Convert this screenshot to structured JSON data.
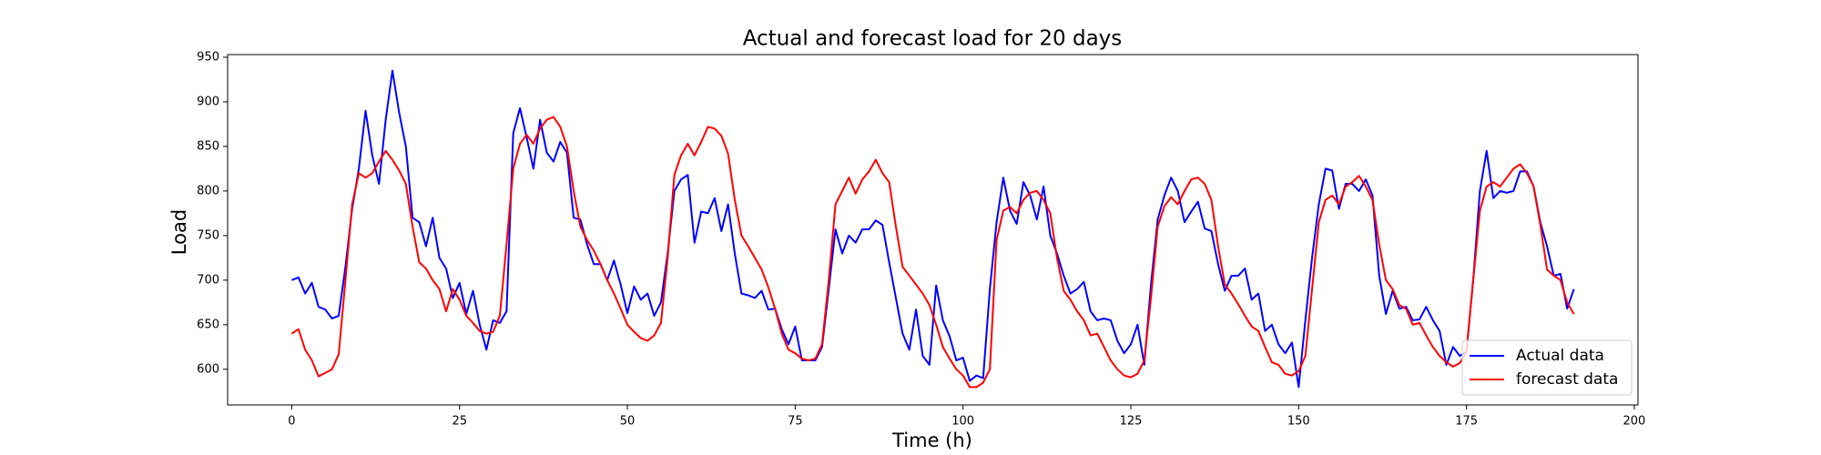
{
  "chart_data": {
    "type": "line",
    "title": "Actual and forecast load for 20 days",
    "x_label": "Time (h)",
    "y_label": "Load",
    "xlim": [
      -9.55,
      200.55
    ],
    "ylim": [
      560,
      953
    ],
    "xticks": [
      0,
      25,
      50,
      75,
      100,
      125,
      150,
      175,
      200
    ],
    "yticks": [
      600,
      650,
      700,
      750,
      800,
      850,
      900,
      950
    ],
    "legend": "lower right",
    "series": [
      {
        "name": "Actual data",
        "color": "#0000ff",
        "values": [
          700,
          703,
          685,
          697,
          670,
          667,
          657,
          660,
          715,
          780,
          825,
          890,
          840,
          808,
          880,
          935,
          888,
          850,
          770,
          765,
          738,
          770,
          725,
          713,
          680,
          697,
          662,
          688,
          650,
          622,
          655,
          652,
          665,
          865,
          893,
          860,
          825,
          880,
          843,
          833,
          855,
          843,
          770,
          768,
          740,
          718,
          718,
          700,
          722,
          695,
          663,
          693,
          678,
          685,
          660,
          675,
          730,
          800,
          813,
          818,
          742,
          777,
          775,
          792,
          755,
          785,
          730,
          685,
          683,
          680,
          688,
          667,
          668,
          645,
          628,
          648,
          610,
          610,
          610,
          625,
          690,
          757,
          730,
          750,
          742,
          757,
          757,
          767,
          762,
          720,
          680,
          640,
          622,
          667,
          615,
          605,
          694,
          655,
          637,
          610,
          613,
          587,
          593,
          590,
          690,
          765,
          815,
          778,
          763,
          810,
          795,
          768,
          805,
          750,
          730,
          705,
          685,
          690,
          698,
          665,
          655,
          657,
          655,
          632,
          618,
          628,
          650,
          605,
          695,
          768,
          795,
          815,
          800,
          765,
          777,
          788,
          758,
          755,
          718,
          688,
          705,
          705,
          713,
          678,
          685,
          643,
          650,
          628,
          618,
          630,
          580,
          655,
          725,
          785,
          825,
          823,
          780,
          808,
          808,
          800,
          813,
          795,
          705,
          662,
          688,
          668,
          670,
          655,
          656,
          670,
          655,
          643,
          605,
          625,
          615,
          620,
          700,
          800,
          845,
          792,
          800,
          798,
          800,
          822,
          822,
          805,
          765,
          738,
          705,
          707,
          668,
          690
        ]
      },
      {
        "name": "forecast data",
        "color": "#ff0000",
        "values": [
          640,
          645,
          622,
          610,
          592,
          596,
          600,
          617,
          700,
          785,
          820,
          815,
          820,
          833,
          845,
          835,
          823,
          808,
          760,
          720,
          713,
          700,
          690,
          665,
          690,
          678,
          660,
          652,
          643,
          640,
          642,
          660,
          740,
          825,
          853,
          863,
          853,
          870,
          880,
          883,
          872,
          850,
          800,
          760,
          745,
          733,
          718,
          700,
          685,
          668,
          650,
          642,
          635,
          632,
          638,
          652,
          725,
          818,
          840,
          853,
          840,
          855,
          872,
          870,
          862,
          842,
          790,
          750,
          738,
          725,
          712,
          692,
          668,
          640,
          622,
          618,
          612,
          610,
          612,
          628,
          700,
          785,
          800,
          815,
          797,
          813,
          822,
          835,
          820,
          810,
          760,
          715,
          705,
          695,
          685,
          672,
          650,
          625,
          612,
          600,
          593,
          580,
          580,
          585,
          600,
          745,
          778,
          782,
          775,
          790,
          798,
          800,
          790,
          775,
          725,
          688,
          678,
          665,
          655,
          638,
          640,
          625,
          610,
          600,
          593,
          591,
          595,
          610,
          680,
          760,
          783,
          793,
          785,
          800,
          813,
          815,
          808,
          790,
          738,
          695,
          685,
          673,
          660,
          648,
          643,
          625,
          608,
          605,
          595,
          593,
          598,
          615,
          690,
          765,
          790,
          795,
          785,
          805,
          810,
          817,
          805,
          790,
          740,
          700,
          690,
          672,
          668,
          650,
          652,
          638,
          625,
          615,
          608,
          603,
          607,
          620,
          700,
          778,
          805,
          810,
          805,
          815,
          825,
          830,
          820,
          805,
          762,
          712,
          705,
          700,
          675,
          662
        ]
      }
    ]
  }
}
